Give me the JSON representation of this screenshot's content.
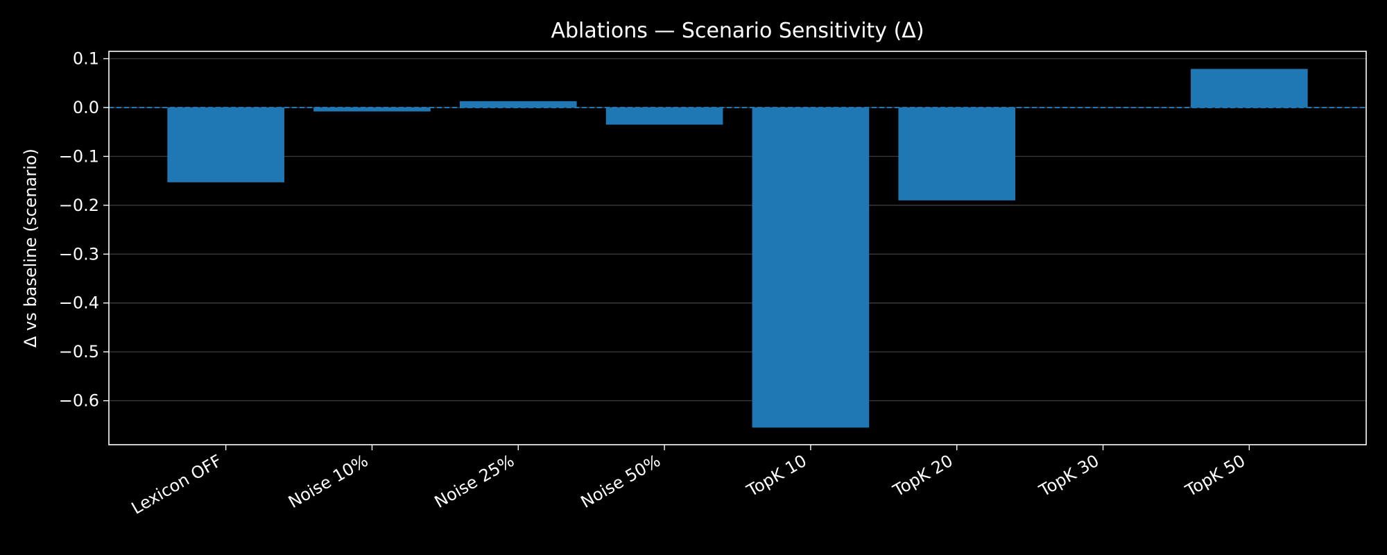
{
  "chart_data": {
    "type": "bar",
    "title": "Ablations — Scenario Sensitivity (Δ)",
    "xlabel": "",
    "ylabel": "Δ vs baseline (scenario)",
    "categories": [
      "Lexicon OFF",
      "Noise 10%",
      "Noise 25%",
      "Noise 50%",
      "TopK 10",
      "TopK 20",
      "TopK 30",
      "TopK 50"
    ],
    "values": [
      -0.153,
      -0.008,
      0.013,
      -0.035,
      -0.655,
      -0.19,
      0.0,
      0.079
    ],
    "ylim": [
      -0.69,
      0.115
    ],
    "yticks": [
      0.1,
      0.0,
      -0.1,
      -0.2,
      -0.3,
      -0.4,
      -0.5,
      -0.6
    ],
    "ytick_labels": [
      "0.1",
      "0.0",
      "−0.1",
      "−0.2",
      "−0.3",
      "−0.4",
      "−0.5",
      "−0.6"
    ],
    "reference_line": 0.0,
    "grid": "y",
    "colors": {
      "background": "#000000",
      "bar": "#1f77b4",
      "axes": "#ffffff",
      "grid": "#3a3a3a",
      "reference_line": "#1f77b4",
      "text": "#ffffff"
    }
  }
}
